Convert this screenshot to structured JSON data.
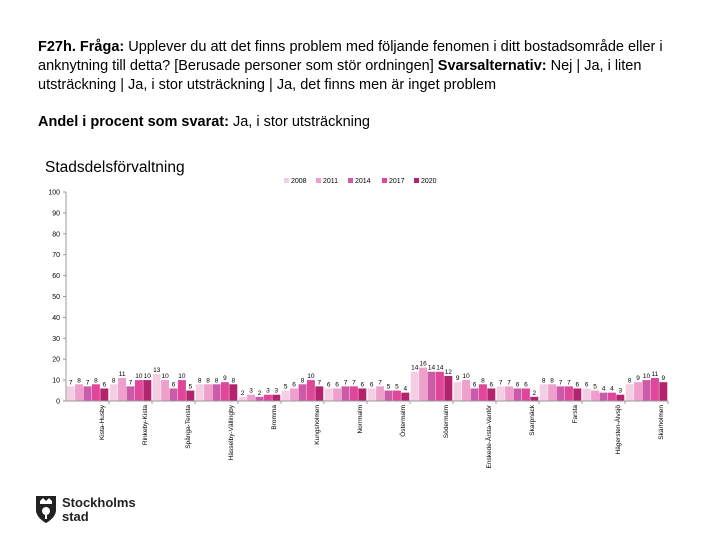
{
  "heading": {
    "question_prefix": "F27h. Fråga:",
    "question_text": " Upplever du att det finns problem med följande fenomen i ditt bostadsområde eller i anknytning till detta? [Berusade personer som stör ordningen]",
    "options_label": " Svarsalternativ:",
    "options_text": " Nej | Ja, i liten utsträckning | Ja, i stor utsträckning | Ja, det finns men är inget problem"
  },
  "subheading": {
    "label": "Andel i procent som svarat:",
    "value": " Ja, i stor utsträckning"
  },
  "logo_text": [
    "Stockholms",
    "stad"
  ],
  "colors": {
    "2008": "#f4cfe3",
    "2011": "#ee9fcb",
    "2014": "#cb5ba8",
    "2017": "#e0479b",
    "2020": "#b3236e",
    "axis": "#999999",
    "text": "#000000"
  },
  "chart_data": {
    "type": "bar",
    "title": "Stadsdelsförvaltning",
    "ylim": [
      0,
      100
    ],
    "yticks": [
      0,
      10,
      20,
      30,
      40,
      50,
      60,
      70,
      80,
      90,
      100
    ],
    "legend_position": "top",
    "categories": [
      "Kista-Husby",
      "Rinkeby-Kista",
      "Spånga-Tensta",
      "Hässelby-Vällingby",
      "Bromma",
      "Kungsholmen",
      "Norrmalm",
      "Östermalm",
      "Södermalm",
      "Enskede-Årsta-Vantör",
      "Skarpnäck",
      "Farsta",
      "Hägersten-Älvsjö",
      "Skärholmen"
    ],
    "series": [
      {
        "name": "2008",
        "values": [
          7,
          8,
          13,
          8,
          2,
          5,
          6,
          6,
          14,
          9,
          7,
          8,
          6,
          8
        ]
      },
      {
        "name": "2011",
        "values": [
          8,
          11,
          10,
          8,
          3,
          6,
          6,
          7,
          16,
          10,
          7,
          8,
          5,
          9
        ]
      },
      {
        "name": "2014",
        "values": [
          7,
          7,
          6,
          8,
          2,
          8,
          7,
          5,
          14,
          6,
          6,
          7,
          4,
          10
        ]
      },
      {
        "name": "2017",
        "values": [
          8,
          10,
          10,
          9,
          3,
          10,
          7,
          5,
          14,
          8,
          6,
          7,
          4,
          11
        ]
      },
      {
        "name": "2020",
        "values": [
          6,
          10,
          5,
          8,
          3,
          7,
          6,
          4,
          12,
          6,
          2,
          6,
          3,
          9
        ]
      }
    ]
  }
}
